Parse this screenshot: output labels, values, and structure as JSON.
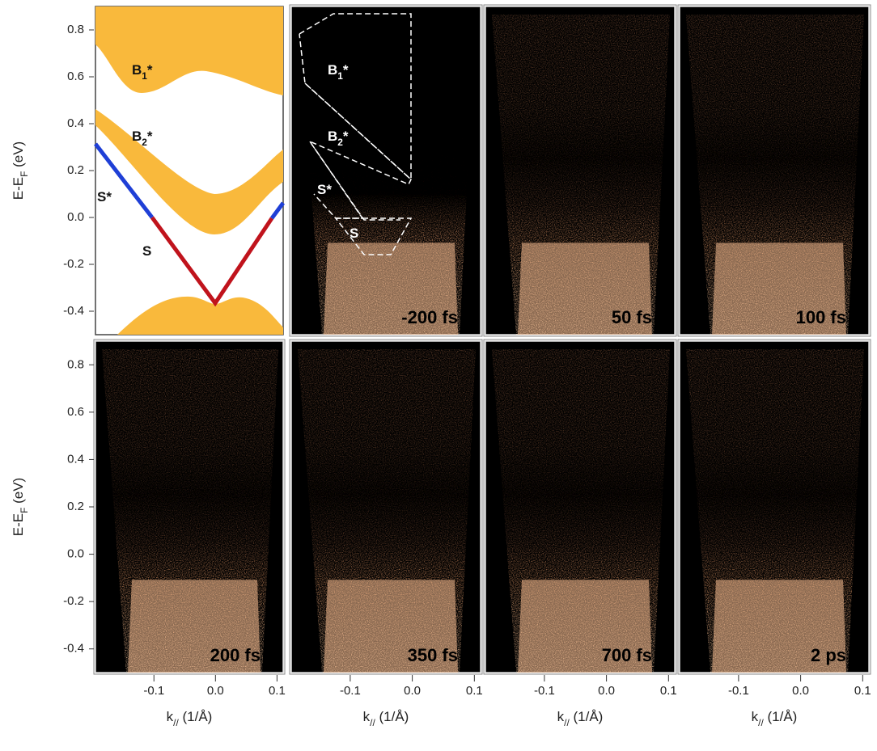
{
  "figure": {
    "y_axis": {
      "label_parts": [
        "E-E",
        "F",
        " (eV)"
      ],
      "ylim": [
        -0.5,
        0.9
      ],
      "yticks": [
        0.8,
        0.6,
        0.4,
        0.2,
        {
          "value": 0,
          "label": "0.0"
        },
        -0.2,
        -0.4
      ]
    },
    "x_axis": {
      "label_parts": [
        "k",
        "//",
        " (1/Å)"
      ],
      "xlim": [
        -0.195,
        0.11
      ],
      "xticks": [
        -0.1,
        {
          "value": 0,
          "label": "0.0"
        },
        0.1
      ]
    },
    "schematic_labels": [
      [
        "B",
        "1",
        "*"
      ],
      [
        "B",
        "2",
        "*"
      ],
      [
        "S",
        "",
        "*"
      ],
      [
        "S",
        "",
        ""
      ]
    ],
    "overlay_labels": [
      [
        "B",
        "1",
        "*"
      ],
      [
        "B",
        "2",
        "*"
      ],
      [
        "S",
        "",
        "*"
      ],
      [
        "S",
        "",
        ""
      ]
    ],
    "panels": [
      "-200 fs",
      "50 fs",
      "100 fs",
      "200 fs",
      "350 fs",
      "700 fs",
      "2 ps"
    ]
  }
}
